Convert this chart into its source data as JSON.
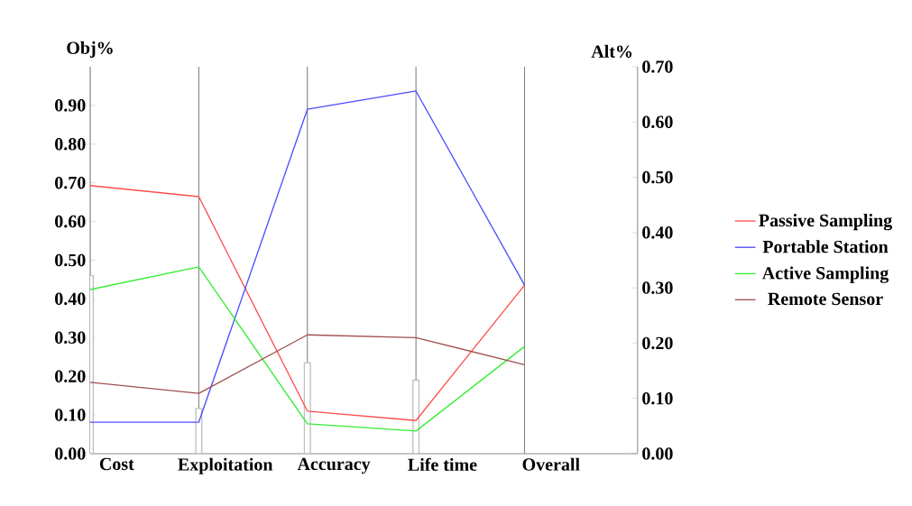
{
  "chart_data": {
    "type": "line",
    "ylabel": "Obj%",
    "y2label": "Alt%",
    "categories": [
      "Cost",
      "Exploitation",
      "Accuracy",
      "Life time",
      "Overall"
    ],
    "ylim": [
      0,
      1.0
    ],
    "yticks": [
      {
        "value": 0,
        "label": "0.00"
      },
      {
        "value": 0.1,
        "label": "0.10"
      },
      {
        "value": 0.2,
        "label": "0.20"
      },
      {
        "value": 0.3,
        "label": "0.30"
      },
      {
        "value": 0.4,
        "label": "0.40"
      },
      {
        "value": 0.5,
        "label": "0.50"
      },
      {
        "value": 0.6,
        "label": "0.60"
      },
      {
        "value": 0.7,
        "label": "0.70"
      },
      {
        "value": 0.8,
        "label": "0.80"
      },
      {
        "value": 0.9,
        "label": "0.90"
      }
    ],
    "y2lim": [
      0,
      0.7
    ],
    "y2ticks": [
      {
        "value": 0,
        "label": "0.00"
      },
      {
        "value": 0.1,
        "label": "0.10"
      },
      {
        "value": 0.2,
        "label": "0.20"
      },
      {
        "value": 0.3,
        "label": "0.30"
      },
      {
        "value": 0.4,
        "label": "0.40"
      },
      {
        "value": 0.5,
        "label": "0.50"
      },
      {
        "value": 0.6,
        "label": "0.60"
      },
      {
        "value": 0.7,
        "label": "0.70"
      }
    ],
    "grid": "x",
    "legend": "right",
    "marker": "none",
    "series": [
      {
        "type": "bar",
        "axis": "y",
        "color": "#ffffff",
        "values": [
          0.46,
          0.117,
          0.235,
          0.19,
          null
        ]
      },
      {
        "name": "Passive Sampling",
        "axis": "y2",
        "color": "#ff4d4d",
        "values": [
          0.485,
          0.465,
          0.077,
          0.06,
          0.305
        ]
      },
      {
        "name": "Portable Station",
        "axis": "y2",
        "color": "#4d4dff",
        "values": [
          0.057,
          0.057,
          0.623,
          0.656,
          0.305
        ]
      },
      {
        "name": "Active Sampling",
        "axis": "y2",
        "color": "#33ee33",
        "values": [
          0.297,
          0.338,
          0.054,
          0.041,
          0.194
        ]
      },
      {
        "name": "Remote Sensor",
        "axis": "y2",
        "color": "#a05050",
        "values": [
          0.129,
          0.109,
          0.215,
          0.21,
          0.161
        ]
      }
    ]
  }
}
